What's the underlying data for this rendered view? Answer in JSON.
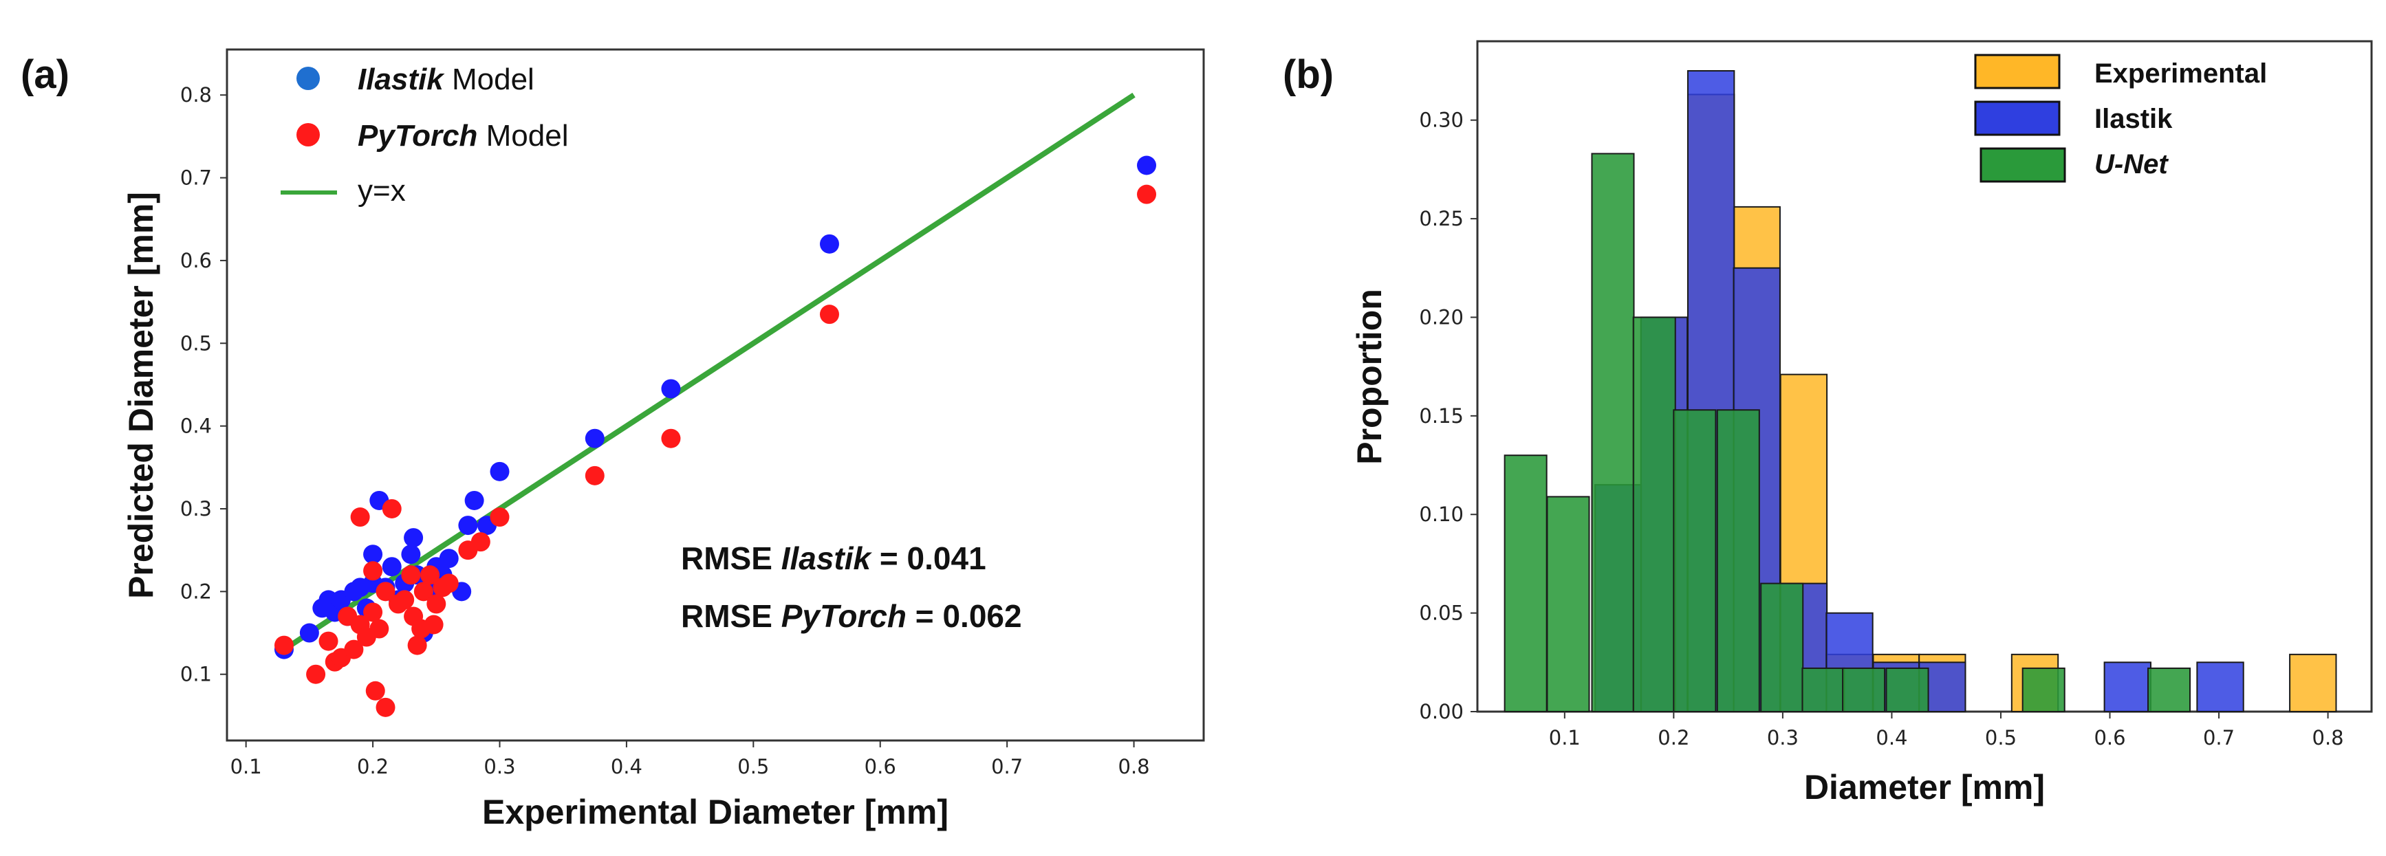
{
  "panel_a": {
    "label": "(a)",
    "annotation": {
      "line1_prefix": "RMSE ",
      "line1_model": "Ilastik",
      "line1_suffix": " = 0.041",
      "line2_prefix": "RMSE ",
      "line2_model": "PyTorch",
      "line2_suffix": " = 0.062"
    },
    "legend": [
      {
        "name_italic": "Ilastik",
        "name_rest": " Model",
        "color": "#1f6fd0"
      },
      {
        "name_italic": "PyTorch",
        "name_rest": " Model",
        "color": "#ff1a1a"
      },
      {
        "name_italic": "",
        "name_rest": "y=x",
        "color": "#3aa63a"
      }
    ]
  },
  "panel_b": {
    "label": "(b)",
    "legend": [
      {
        "name": "Experimental",
        "italic": false,
        "color": "#ffb727"
      },
      {
        "name": "Ilastik",
        "italic": false,
        "color": "#2f3fe0"
      },
      {
        "name": "U-Net",
        "italic": true,
        "color": "#2a9a3a"
      }
    ]
  },
  "chart_data": [
    {
      "type": "scatter",
      "title": "",
      "xlabel": "Experimental Diameter [mm]",
      "ylabel": "Predicted Diameter [mm]",
      "xlim": [
        0.085,
        0.855
      ],
      "ylim": [
        0.02,
        0.855
      ],
      "xticks": [
        0.1,
        0.2,
        0.3,
        0.4,
        0.5,
        0.6,
        0.7,
        0.8
      ],
      "yticks": [
        0.1,
        0.2,
        0.3,
        0.4,
        0.5,
        0.6,
        0.7,
        0.8
      ],
      "colors": {
        "Ilastik": "#1a1aff",
        "PyTorch": "#ff1a1a",
        "y=x": "#3aa63a"
      },
      "series": [
        {
          "name": "Ilastik Model",
          "points": [
            [
              0.13,
              0.13
            ],
            [
              0.15,
              0.15
            ],
            [
              0.16,
              0.18
            ],
            [
              0.165,
              0.19
            ],
            [
              0.17,
              0.175
            ],
            [
              0.175,
              0.19
            ],
            [
              0.18,
              0.17
            ],
            [
              0.185,
              0.2
            ],
            [
              0.19,
              0.205
            ],
            [
              0.195,
              0.18
            ],
            [
              0.2,
              0.245
            ],
            [
              0.2,
              0.21
            ],
            [
              0.205,
              0.31
            ],
            [
              0.21,
              0.205
            ],
            [
              0.215,
              0.23
            ],
            [
              0.22,
              0.19
            ],
            [
              0.225,
              0.21
            ],
            [
              0.23,
              0.245
            ],
            [
              0.232,
              0.265
            ],
            [
              0.235,
              0.22
            ],
            [
              0.24,
              0.15
            ],
            [
              0.245,
              0.2
            ],
            [
              0.25,
              0.23
            ],
            [
              0.255,
              0.22
            ],
            [
              0.26,
              0.24
            ],
            [
              0.27,
              0.2
            ],
            [
              0.275,
              0.28
            ],
            [
              0.28,
              0.31
            ],
            [
              0.29,
              0.28
            ],
            [
              0.3,
              0.345
            ],
            [
              0.375,
              0.385
            ],
            [
              0.435,
              0.445
            ],
            [
              0.56,
              0.62
            ],
            [
              0.81,
              0.715
            ]
          ]
        },
        {
          "name": "PyTorch Model",
          "points": [
            [
              0.13,
              0.135
            ],
            [
              0.155,
              0.1
            ],
            [
              0.165,
              0.14
            ],
            [
              0.17,
              0.115
            ],
            [
              0.175,
              0.12
            ],
            [
              0.18,
              0.17
            ],
            [
              0.185,
              0.13
            ],
            [
              0.19,
              0.16
            ],
            [
              0.19,
              0.29
            ],
            [
              0.195,
              0.145
            ],
            [
              0.2,
              0.225
            ],
            [
              0.2,
              0.175
            ],
            [
              0.202,
              0.08
            ],
            [
              0.205,
              0.155
            ],
            [
              0.21,
              0.06
            ],
            [
              0.21,
              0.2
            ],
            [
              0.215,
              0.3
            ],
            [
              0.22,
              0.185
            ],
            [
              0.225,
              0.19
            ],
            [
              0.23,
              0.22
            ],
            [
              0.232,
              0.17
            ],
            [
              0.235,
              0.135
            ],
            [
              0.238,
              0.155
            ],
            [
              0.24,
              0.2
            ],
            [
              0.245,
              0.22
            ],
            [
              0.248,
              0.16
            ],
            [
              0.25,
              0.185
            ],
            [
              0.255,
              0.205
            ],
            [
              0.26,
              0.21
            ],
            [
              0.275,
              0.25
            ],
            [
              0.285,
              0.26
            ],
            [
              0.3,
              0.29
            ],
            [
              0.375,
              0.34
            ],
            [
              0.435,
              0.385
            ],
            [
              0.56,
              0.535
            ],
            [
              0.81,
              0.68
            ]
          ]
        },
        {
          "name": "y=x",
          "line": [
            [
              0.13,
              0.13
            ],
            [
              0.8,
              0.8
            ]
          ]
        }
      ],
      "annotations": [
        "RMSE Ilastik = 0.041",
        "RMSE PyTorch = 0.062"
      ]
    },
    {
      "type": "bar",
      "subtype": "histogram",
      "title": "",
      "xlabel": "Diameter [mm]",
      "ylabel": "Proportion",
      "xlim": [
        0.02,
        0.84
      ],
      "ylim": [
        0.0,
        0.34
      ],
      "xticks": [
        0.1,
        0.2,
        0.3,
        0.4,
        0.5,
        0.6,
        0.7,
        0.8
      ],
      "yticks": [
        0.0,
        0.05,
        0.1,
        0.15,
        0.2,
        0.25,
        0.3
      ],
      "series": [
        {
          "name": "Experimental",
          "bin_width": 0.0425,
          "bins": [
            [
              0.128,
              0.115
            ],
            [
              0.17,
              0.2
            ],
            [
              0.213,
              0.313
            ],
            [
              0.255,
              0.256
            ],
            [
              0.298,
              0.171
            ],
            [
              0.34,
              0.029
            ],
            [
              0.383,
              0.029
            ],
            [
              0.425,
              0.029
            ],
            [
              0.51,
              0.029
            ],
            [
              0.765,
              0.029
            ]
          ]
        },
        {
          "name": "Ilastik",
          "bin_width": 0.0425,
          "bins": [
            [
              0.128,
              0.115
            ],
            [
              0.17,
              0.2
            ],
            [
              0.213,
              0.325
            ],
            [
              0.255,
              0.225
            ],
            [
              0.298,
              0.065
            ],
            [
              0.34,
              0.05
            ],
            [
              0.383,
              0.025
            ],
            [
              0.425,
              0.025
            ],
            [
              0.595,
              0.025
            ],
            [
              0.68,
              0.025
            ]
          ]
        },
        {
          "name": "U-Net",
          "bin_width": 0.0385,
          "bins": [
            [
              0.045,
              0.13
            ],
            [
              0.084,
              0.109
            ],
            [
              0.125,
              0.283
            ],
            [
              0.163,
              0.2
            ],
            [
              0.2,
              0.153
            ],
            [
              0.24,
              0.153
            ],
            [
              0.28,
              0.065
            ],
            [
              0.318,
              0.022
            ],
            [
              0.355,
              0.022
            ],
            [
              0.395,
              0.022
            ],
            [
              0.52,
              0.022
            ],
            [
              0.635,
              0.022
            ]
          ]
        }
      ]
    }
  ]
}
